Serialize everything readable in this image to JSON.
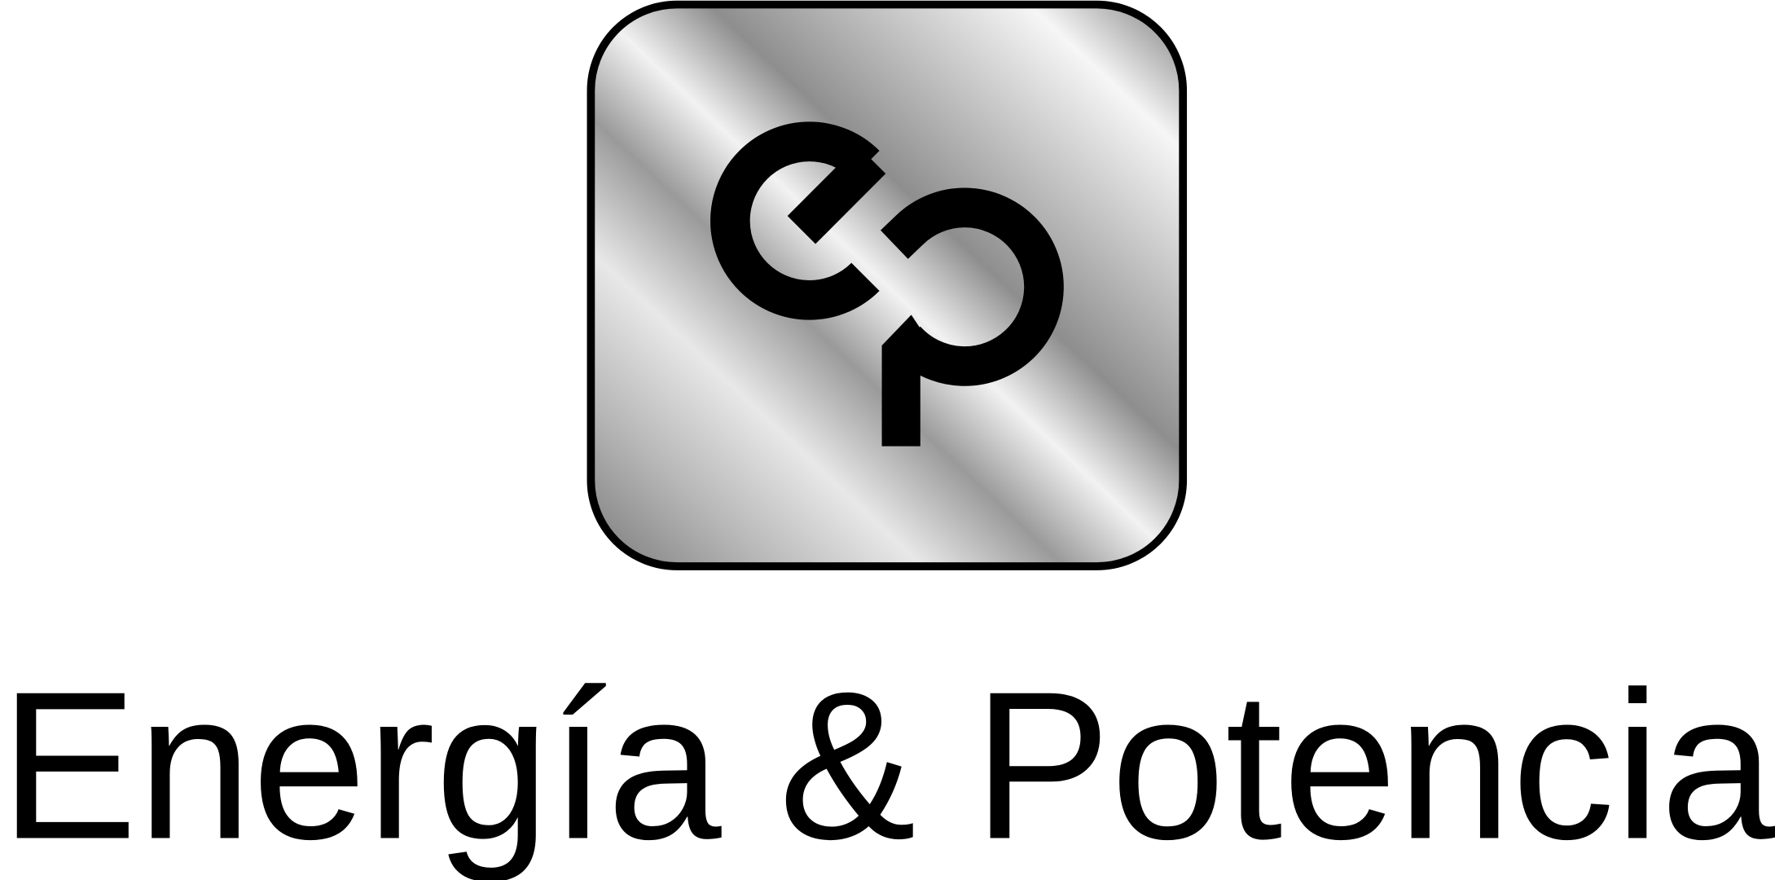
{
  "brand": {
    "name": "Energía & Potencia"
  }
}
